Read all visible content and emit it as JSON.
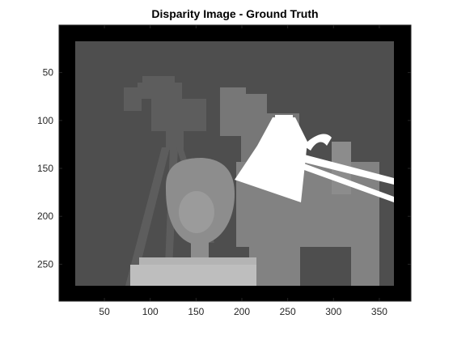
{
  "figure": {
    "title": "Disparity Image - Ground Truth"
  },
  "axes": {
    "x_ticks": [
      {
        "value": 50,
        "label": "50"
      },
      {
        "value": 100,
        "label": "100"
      },
      {
        "value": 150,
        "label": "150"
      },
      {
        "value": 200,
        "label": "200"
      },
      {
        "value": 250,
        "label": "250"
      },
      {
        "value": 300,
        "label": "300"
      },
      {
        "value": 350,
        "label": "350"
      }
    ],
    "y_ticks": [
      {
        "value": 50,
        "label": "50"
      },
      {
        "value": 100,
        "label": "100"
      },
      {
        "value": 150,
        "label": "150"
      },
      {
        "value": 200,
        "label": "200"
      },
      {
        "value": 250,
        "label": "250"
      }
    ],
    "xlim": [
      0.5,
      384.5
    ],
    "ylim": [
      0.5,
      288.5
    ],
    "y_direction": "reverse",
    "colormap": "gray"
  },
  "image": {
    "description": "grayscale disparity map (Tsukuba scene): black border, gray background, camera on tripod, sculpted head on pedestal, white desk lamp"
  }
}
